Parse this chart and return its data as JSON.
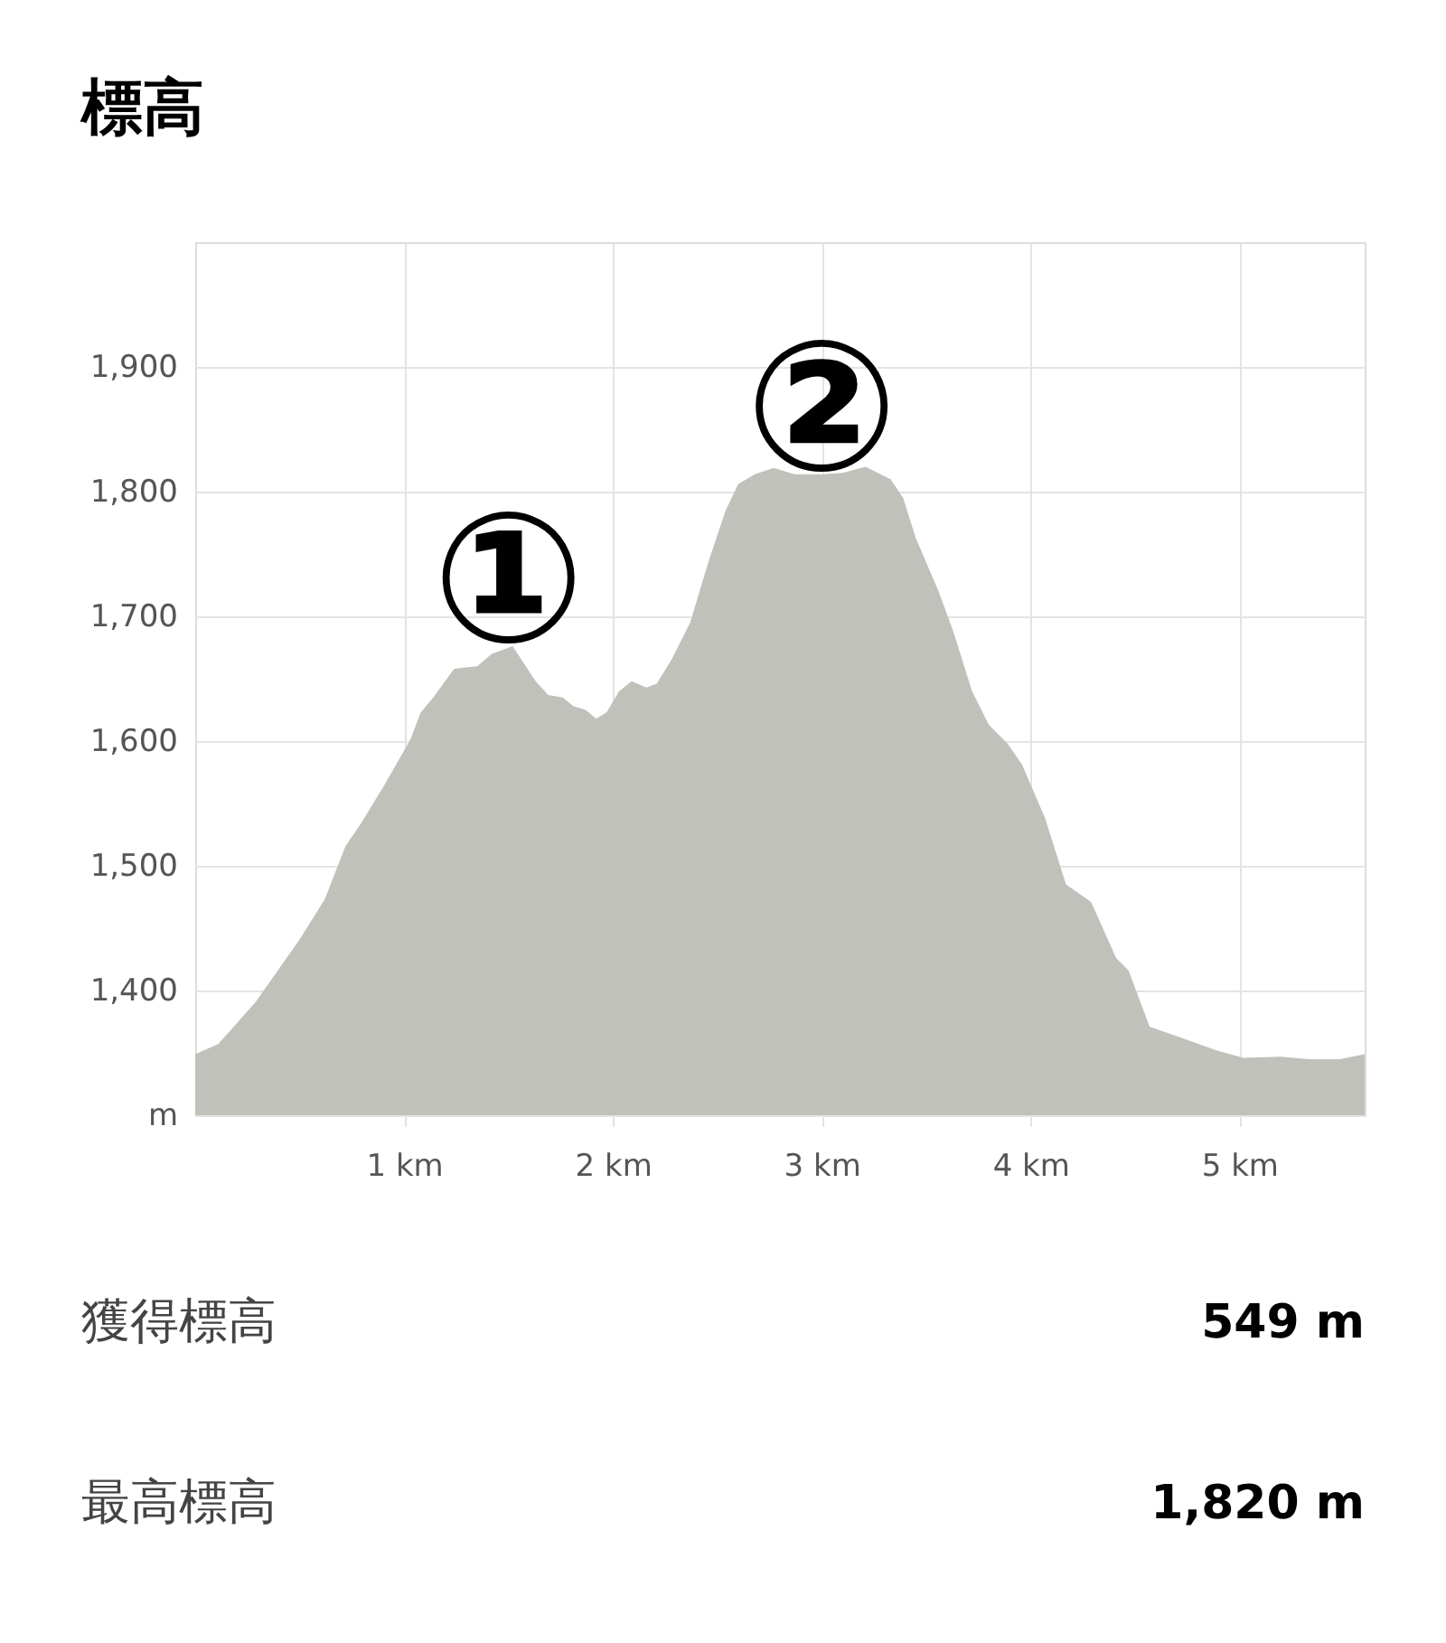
{
  "chart_data": {
    "type": "area",
    "title": "標高",
    "x": [
      0,
      0.11,
      0.29,
      0.5,
      0.62,
      0.72,
      0.79,
      0.91,
      1.03,
      1.08,
      1.14,
      1.24,
      1.35,
      1.42,
      1.52,
      1.63,
      1.69,
      1.76,
      1.81,
      1.87,
      1.92,
      1.97,
      2.03,
      2.09,
      2.16,
      2.21,
      2.28,
      2.37,
      2.46,
      2.54,
      2.6,
      2.68,
      2.77,
      2.87,
      3.0,
      3.1,
      3.21,
      3.33,
      3.39,
      3.45,
      3.56,
      3.63,
      3.72,
      3.8,
      3.89,
      3.96,
      4.07,
      4.17,
      4.29,
      4.41,
      4.47,
      4.57,
      4.74,
      4.89,
      5.02,
      5.2,
      5.33,
      5.48,
      5.6
    ],
    "series": [
      {
        "color": "#c1c1bc",
        "values": [
          1349,
          1357,
          1391,
          1441,
          1473,
          1516,
          1533,
          1566,
          1601,
          1623,
          1635,
          1658,
          1660,
          1670,
          1676,
          1648,
          1637,
          1635,
          1628,
          1625,
          1618,
          1623,
          1640,
          1648,
          1643,
          1646,
          1665,
          1695,
          1745,
          1785,
          1806,
          1814,
          1819,
          1814,
          1814,
          1815,
          1820,
          1810,
          1795,
          1763,
          1720,
          1688,
          1640,
          1613,
          1598,
          1581,
          1538,
          1485,
          1471,
          1426,
          1416,
          1371,
          1361,
          1352,
          1346,
          1347,
          1345,
          1345,
          1349
        ]
      }
    ],
    "xlim": [
      0,
      5.6
    ],
    "xticks": [
      {
        "value": 1,
        "label": "1 km"
      },
      {
        "value": 2,
        "label": "2 km"
      },
      {
        "value": 3,
        "label": "3 km"
      },
      {
        "value": 4,
        "label": "4 km"
      },
      {
        "value": 5,
        "label": "5 km"
      }
    ],
    "ylim": [
      1300,
      2000
    ],
    "yticks": [
      {
        "value": 1300,
        "label": "m"
      },
      {
        "value": 1400,
        "label": "1,400"
      },
      {
        "value": 1500,
        "label": "1,500"
      },
      {
        "value": 1600,
        "label": "1,600"
      },
      {
        "value": 1700,
        "label": "1,700"
      },
      {
        "value": 1800,
        "label": "1,800"
      },
      {
        "value": 1900,
        "label": "1,900"
      }
    ],
    "grid": true,
    "annotations": [
      {
        "text": "①",
        "x": 1.5,
        "y": 1676
      },
      {
        "text": "②",
        "x": 3.0,
        "y": 1814
      },
      "獲得標高",
      "549 m",
      "最高標高",
      "1,820 m"
    ]
  }
}
